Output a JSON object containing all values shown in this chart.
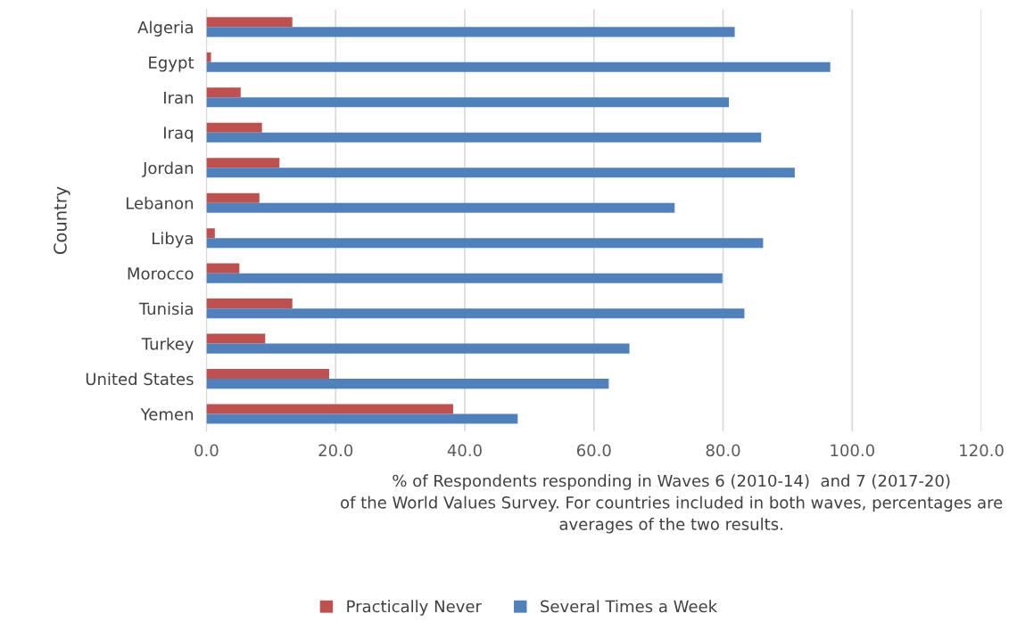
{
  "chart_data": {
    "type": "bar",
    "orientation": "horizontal",
    "xlabel": "% of Respondents responding in Waves 6 (2010-14)  and 7 (2017-20)\nof the World Values Survey. For countries included in both waves, percentages are\naverages of the two results.",
    "ylabel": "Country",
    "categories": [
      "Algeria",
      "Egypt",
      "Iran",
      "Iraq",
      "Jordan",
      "Lebanon",
      "Libya",
      "Morocco",
      "Tunisia",
      "Turkey",
      "United States",
      "Yemen"
    ],
    "series": [
      {
        "name": "Practically Never",
        "color": "#c0504d",
        "values": [
          13.3,
          0.7,
          5.3,
          8.6,
          11.3,
          8.2,
          1.3,
          5.1,
          13.3,
          9.1,
          19.0,
          38.2
        ]
      },
      {
        "name": "Several Times a Week",
        "color": "#4f81bd",
        "values": [
          81.8,
          96.6,
          80.9,
          85.9,
          91.1,
          72.5,
          86.2,
          79.9,
          83.3,
          65.5,
          62.3,
          48.2
        ]
      }
    ],
    "xlim": [
      0,
      120
    ],
    "xticks": [
      {
        "value": 0,
        "label": "0.0"
      },
      {
        "value": 20,
        "label": "20.0"
      },
      {
        "value": 40,
        "label": "40.0"
      },
      {
        "value": 60,
        "label": "60.0"
      },
      {
        "value": 80,
        "label": "80.0"
      },
      {
        "value": 100,
        "label": "100.0"
      },
      {
        "value": 120,
        "label": "120.0"
      }
    ],
    "grid": "x",
    "legend": "bottom"
  }
}
